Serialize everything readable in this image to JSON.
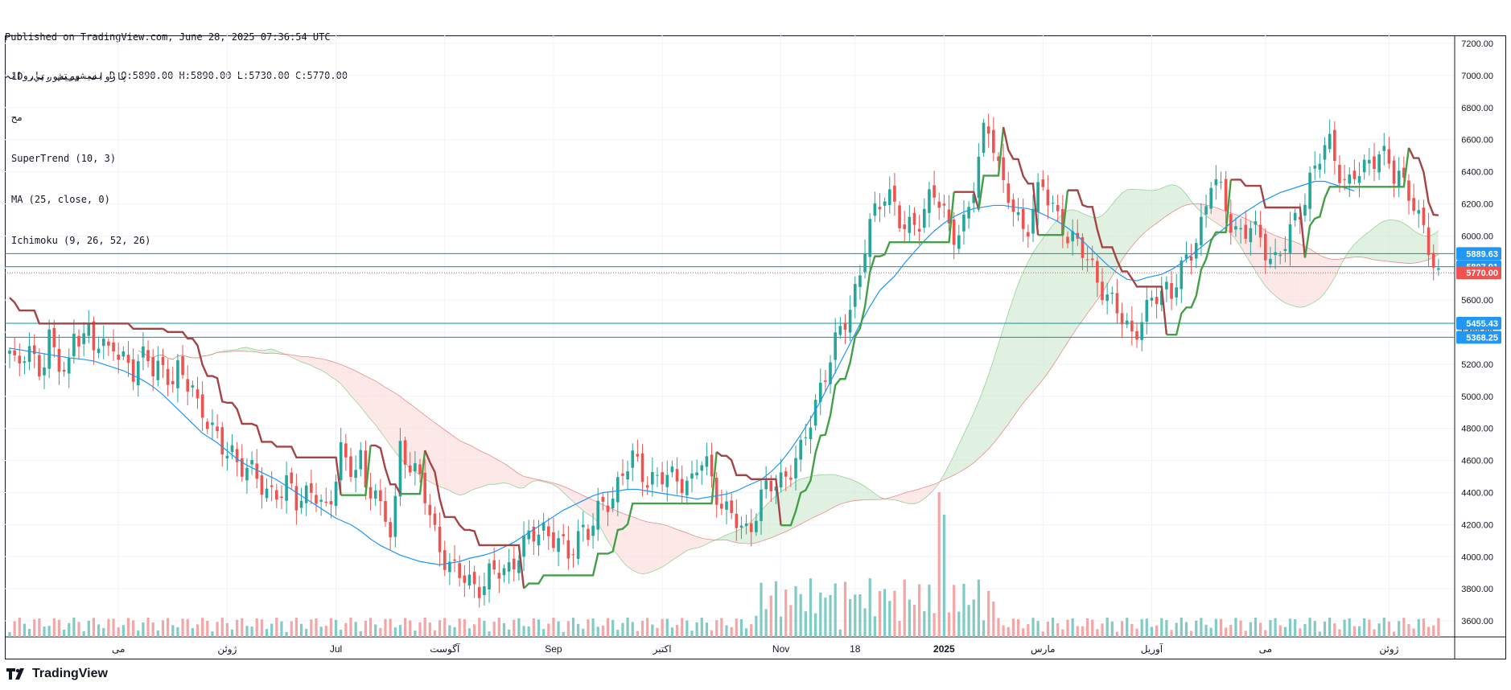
{
  "publish": {
    "line1": "Published on TradingView.com, June 28, 2025 07:36:54 UTC",
    "line2": "بمیشورتي ,پاروانہ D O:5890.00 H:5890.00 L:5730.00 C:5770.00"
  },
  "legend": {
    "symbol": "1D ,پاروانہ بمیشورتي",
    "sub": "ﻣﺢ",
    "supertrend": "SuperTrend (10, 3)",
    "ma": "MA (25, close, 0)",
    "ichimoku": "Ichimoku (9, 26, 52, 26)"
  },
  "brand": {
    "name": "TradingView"
  },
  "colors": {
    "up": "#26a69a",
    "down": "#ef5350",
    "supertrend_up": "#43a047",
    "supertrend_down": "#a44444",
    "ma": "#2196f3",
    "cloud_bull": "#c8e6c9",
    "cloud_bear": "#fbd5d5",
    "hline": "#0097a7",
    "label_blue": "#2196f3",
    "label_red": "#ef5350"
  },
  "chart_data": {
    "type": "candlestick",
    "ylim": [
      3500,
      7250
    ],
    "y_ticks": [
      "3600.00",
      "3800.00",
      "4000.00",
      "4200.00",
      "4400.00",
      "4600.00",
      "4800.00",
      "5000.00",
      "5200.00",
      "5400.00",
      "5600.00",
      "5800.00",
      "6000.00",
      "6200.00",
      "6400.00",
      "6600.00",
      "6800.00",
      "7000.00",
      "7200.00"
    ],
    "x_labels": [
      {
        "label": "مى",
        "i": 22
      },
      {
        "label": "ژوئن",
        "i": 44
      },
      {
        "label": "Jul",
        "i": 66
      },
      {
        "label": "آگوست",
        "i": 88
      },
      {
        "label": "Sep",
        "i": 110
      },
      {
        "label": "اكتبر",
        "i": 132
      },
      {
        "label": "Nov",
        "i": 156
      },
      {
        "label": "18",
        "i": 171
      },
      {
        "label": "2025",
        "i": 189
      },
      {
        "label": "مارس",
        "i": 209
      },
      {
        "label": "آوريل",
        "i": 231
      },
      {
        "label": "مى",
        "i": 254
      },
      {
        "label": "ژوئن",
        "i": 279
      }
    ],
    "price_lines": [
      {
        "value": 5889.63,
        "label": "5889.63",
        "kind": "hline"
      },
      {
        "value": 5807.91,
        "label": "5807.91",
        "kind": "hline"
      },
      {
        "value": 5455.43,
        "label": "5455.43",
        "kind": "hline"
      },
      {
        "value": 5368.25,
        "label": "5368.25",
        "kind": "hline"
      },
      {
        "value": 5770.0,
        "label": "5770.00",
        "kind": "last"
      }
    ],
    "closes": [
      5250,
      5150,
      5300,
      5320,
      5200,
      5100,
      5350,
      5280,
      5220,
      5150,
      5400,
      5300,
      5420,
      5350,
      5380,
      5250,
      5300,
      5200,
      5260,
      5180,
      5220,
      5240,
      5150,
      5200,
      5180,
      5100,
      5150,
      5050,
      5100,
      4950,
      4900,
      4800,
      4700,
      4650,
      4700,
      4600,
      4550,
      4520,
      4480,
      4450,
      4420,
      4400,
      4380,
      4450,
      4350,
      4400,
      4420,
      4380,
      4300,
      4250,
      4500,
      4700,
      4550,
      4500,
      4600,
      4400,
      4500,
      4300,
      4200,
      4100,
      4700,
      4650,
      4550,
      4500,
      4350,
      4200,
      4100,
      4000,
      3920,
      3880,
      3860,
      3850,
      3830,
      3820,
      3880,
      3900,
      3920,
      3950,
      4000,
      4050,
      4100,
      4150,
      4200,
      4150,
      4100,
      4050,
      4000,
      4100,
      4200,
      4150,
      4200,
      4300,
      4350,
      4400,
      4500,
      4550,
      4600,
      4550,
      4500,
      4500,
      4480,
      4480,
      4490,
      4500,
      4480,
      4460,
      4550,
      4600,
      4500,
      4400,
      4300,
      4250,
      4200,
      4150,
      4200,
      4300,
      4400,
      4420,
      4450,
      4500,
      4550,
      4600,
      4650,
      4800,
      4950,
      5100,
      5200,
      5300,
      5400,
      5500,
      5650,
      5800,
      6000,
      6100,
      6200,
      6300,
      6250,
      6100,
      6000,
      6050,
      6100,
      6200,
      6300,
      6200,
      6100,
      6000,
      6050,
      6100,
      6200,
      6400,
      6650,
      6700,
      6500,
      6300,
      6200,
      6100,
      6050,
      6100,
      6250,
      6300,
      6200,
      6150,
      6100,
      6000,
      5950,
      5900,
      5850,
      5800,
      5700,
      5600,
      5550,
      5500,
      5450,
      5400,
      5450,
      5500,
      5600,
      5650,
      5700,
      5650,
      5750,
      5800,
      5900,
      6050,
      6150,
      6350,
      6300,
      6200,
      6100,
      6050,
      6000,
      6050,
      6000,
      5950,
      5900,
      5850,
      5900,
      6000,
      6100,
      6200,
      6350,
      6400,
      6500,
      6600,
      6500,
      6400,
      6300,
      6350,
      6400,
      6450,
      6500,
      6550,
      6450,
      6350,
      6400,
      6300,
      6250,
      6100,
      5950,
      5850,
      5770
    ],
    "ma_values": [
      5300,
      5290,
      5280,
      5270,
      5260,
      5250,
      5240,
      5230,
      5220,
      5200,
      5180,
      5160,
      5130,
      5100,
      5060,
      5010,
      4950,
      4890,
      4830,
      4770,
      4710,
      4660,
      4610,
      4570,
      4540,
      4510,
      4480,
      4440,
      4400,
      4360,
      4320,
      4280,
      4240,
      4200,
      4160,
      4110,
      4070,
      4040,
      4010,
      3990,
      3970,
      3960,
      3950,
      3960,
      3970,
      3990,
      4010,
      4030,
      4060,
      4090,
      4130,
      4170,
      4210,
      4250,
      4290,
      4320,
      4350,
      4380,
      4400,
      4410,
      4420,
      4420,
      4410,
      4400,
      4390,
      4380,
      4370,
      4360,
      4370,
      4380,
      4390,
      4410,
      4440,
      4480,
      4530,
      4590,
      4670,
      4760,
      4860,
      4970,
      5090,
      5210,
      5330,
      5450,
      5560,
      5660,
      5750,
      5830,
      5900,
      5970,
      6030,
      6080,
      6120,
      6150,
      6170,
      6180,
      6190,
      6190,
      6180,
      6170,
      6150,
      6120,
      6090,
      6050,
      6000,
      5940,
      5880,
      5820,
      5770,
      5730,
      5720,
      5740,
      5760,
      5790,
      5830,
      5880,
      5930,
      5980,
      6030,
      6080,
      6130,
      6170,
      6210,
      6240,
      6270,
      6300,
      6320,
      6340,
      6340,
      6320,
      6300,
      6280
    ],
    "candle_count": 290
  }
}
